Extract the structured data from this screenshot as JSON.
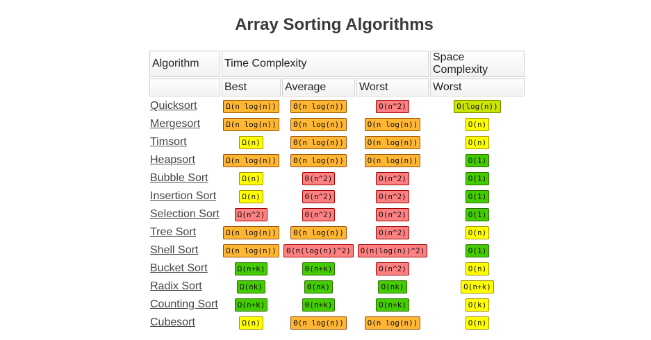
{
  "page": {
    "title": "Array Sorting Algorithms"
  },
  "colors": {
    "good": "#44cc00",
    "fair": "#ffff00",
    "ok": "#cbe500",
    "mid": "#ffb733",
    "bad": "#ff8080"
  },
  "table": {
    "headers": {
      "algorithm": "Algorithm",
      "time_complexity": "Time Complexity",
      "space_complexity": "Space Complexity",
      "best": "Best",
      "average": "Average",
      "worst": "Worst",
      "space_worst": "Worst"
    },
    "rows": [
      {
        "name": "Quicksort",
        "best": {
          "v": "Ω(n log(n))",
          "c": "mid"
        },
        "average": {
          "v": "Θ(n log(n))",
          "c": "mid"
        },
        "worst": {
          "v": "O(n^2)",
          "c": "bad"
        },
        "space": {
          "v": "O(log(n))",
          "c": "ok"
        }
      },
      {
        "name": "Mergesort",
        "best": {
          "v": "Ω(n log(n))",
          "c": "mid"
        },
        "average": {
          "v": "Θ(n log(n))",
          "c": "mid"
        },
        "worst": {
          "v": "O(n log(n))",
          "c": "mid"
        },
        "space": {
          "v": "O(n)",
          "c": "fair"
        }
      },
      {
        "name": "Timsort",
        "best": {
          "v": "Ω(n)",
          "c": "fair"
        },
        "average": {
          "v": "Θ(n log(n))",
          "c": "mid"
        },
        "worst": {
          "v": "O(n log(n))",
          "c": "mid"
        },
        "space": {
          "v": "O(n)",
          "c": "fair"
        }
      },
      {
        "name": "Heapsort",
        "best": {
          "v": "Ω(n log(n))",
          "c": "mid"
        },
        "average": {
          "v": "Θ(n log(n))",
          "c": "mid"
        },
        "worst": {
          "v": "O(n log(n))",
          "c": "mid"
        },
        "space": {
          "v": "O(1)",
          "c": "good"
        }
      },
      {
        "name": "Bubble Sort",
        "best": {
          "v": "Ω(n)",
          "c": "fair"
        },
        "average": {
          "v": "Θ(n^2)",
          "c": "bad"
        },
        "worst": {
          "v": "O(n^2)",
          "c": "bad"
        },
        "space": {
          "v": "O(1)",
          "c": "good"
        }
      },
      {
        "name": "Insertion Sort",
        "best": {
          "v": "Ω(n)",
          "c": "fair"
        },
        "average": {
          "v": "Θ(n^2)",
          "c": "bad"
        },
        "worst": {
          "v": "O(n^2)",
          "c": "bad"
        },
        "space": {
          "v": "O(1)",
          "c": "good"
        }
      },
      {
        "name": "Selection Sort",
        "best": {
          "v": "Ω(n^2)",
          "c": "bad"
        },
        "average": {
          "v": "Θ(n^2)",
          "c": "bad"
        },
        "worst": {
          "v": "O(n^2)",
          "c": "bad"
        },
        "space": {
          "v": "O(1)",
          "c": "good"
        }
      },
      {
        "name": "Tree Sort",
        "best": {
          "v": "Ω(n log(n))",
          "c": "mid"
        },
        "average": {
          "v": "Θ(n log(n))",
          "c": "mid"
        },
        "worst": {
          "v": "O(n^2)",
          "c": "bad"
        },
        "space": {
          "v": "O(n)",
          "c": "fair"
        }
      },
      {
        "name": "Shell Sort",
        "best": {
          "v": "Ω(n log(n))",
          "c": "mid"
        },
        "average": {
          "v": "Θ(n(log(n))^2)",
          "c": "bad"
        },
        "worst": {
          "v": "O(n(log(n))^2)",
          "c": "bad"
        },
        "space": {
          "v": "O(1)",
          "c": "good"
        }
      },
      {
        "name": "Bucket Sort",
        "best": {
          "v": "Ω(n+k)",
          "c": "good"
        },
        "average": {
          "v": "Θ(n+k)",
          "c": "good"
        },
        "worst": {
          "v": "O(n^2)",
          "c": "bad"
        },
        "space": {
          "v": "O(n)",
          "c": "fair"
        }
      },
      {
        "name": "Radix Sort",
        "best": {
          "v": "Ω(nk)",
          "c": "good"
        },
        "average": {
          "v": "Θ(nk)",
          "c": "good"
        },
        "worst": {
          "v": "O(nk)",
          "c": "good"
        },
        "space": {
          "v": "O(n+k)",
          "c": "fair"
        }
      },
      {
        "name": "Counting Sort",
        "best": {
          "v": "Ω(n+k)",
          "c": "good"
        },
        "average": {
          "v": "Θ(n+k)",
          "c": "good"
        },
        "worst": {
          "v": "O(n+k)",
          "c": "good"
        },
        "space": {
          "v": "O(k)",
          "c": "fair"
        }
      },
      {
        "name": "Cubesort",
        "best": {
          "v": "Ω(n)",
          "c": "fair"
        },
        "average": {
          "v": "Θ(n log(n))",
          "c": "mid"
        },
        "worst": {
          "v": "O(n log(n))",
          "c": "mid"
        },
        "space": {
          "v": "O(n)",
          "c": "fair"
        }
      }
    ]
  }
}
